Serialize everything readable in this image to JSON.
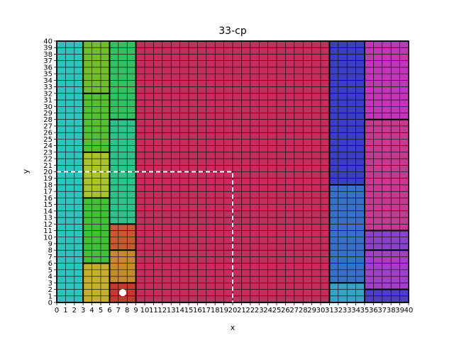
{
  "chart_data": {
    "type": "heatmap",
    "title": "33-cp",
    "xlabel": "x",
    "ylabel": "y",
    "xlim": [
      0,
      40
    ],
    "ylim": [
      0,
      40
    ],
    "grid_step": 1,
    "x_ticks": [
      0,
      1,
      2,
      3,
      4,
      5,
      6,
      7,
      8,
      9,
      10,
      11,
      12,
      13,
      14,
      15,
      16,
      17,
      18,
      19,
      20,
      21,
      22,
      23,
      24,
      25,
      26,
      27,
      28,
      29,
      30,
      31,
      32,
      33,
      34,
      35,
      36,
      37,
      38,
      39,
      40
    ],
    "y_ticks": [
      0,
      1,
      2,
      3,
      4,
      5,
      6,
      7,
      8,
      9,
      10,
      11,
      12,
      13,
      14,
      15,
      16,
      17,
      18,
      19,
      20,
      21,
      22,
      23,
      24,
      25,
      26,
      27,
      28,
      29,
      30,
      31,
      32,
      33,
      34,
      35,
      36,
      37,
      38,
      39,
      40
    ],
    "regions": [
      {
        "x0": 0,
        "x1": 3,
        "y0": 0,
        "y1": 40,
        "color": "#2ec4bc"
      },
      {
        "x0": 3,
        "x1": 6,
        "y0": 0,
        "y1": 6,
        "color": "#c4b030"
      },
      {
        "x0": 3,
        "x1": 6,
        "y0": 6,
        "y1": 16,
        "color": "#44c038"
      },
      {
        "x0": 3,
        "x1": 6,
        "y0": 16,
        "y1": 23,
        "color": "#a8c430"
      },
      {
        "x0": 3,
        "x1": 6,
        "y0": 23,
        "y1": 32,
        "color": "#52c032"
      },
      {
        "x0": 3,
        "x1": 6,
        "y0": 32,
        "y1": 40,
        "color": "#72bc2e"
      },
      {
        "x0": 6,
        "x1": 9,
        "y0": 0,
        "y1": 3,
        "color": "#c43a30"
      },
      {
        "x0": 6,
        "x1": 9,
        "y0": 3,
        "y1": 8,
        "color": "#c48a2e"
      },
      {
        "x0": 6,
        "x1": 9,
        "y0": 8,
        "y1": 12,
        "color": "#c45a32"
      },
      {
        "x0": 6,
        "x1": 9,
        "y0": 12,
        "y1": 28,
        "color": "#30c08a"
      },
      {
        "x0": 6,
        "x1": 9,
        "y0": 28,
        "y1": 40,
        "color": "#34c062"
      },
      {
        "x0": 9,
        "x1": 31,
        "y0": 0,
        "y1": 40,
        "color": "#c42e5c"
      },
      {
        "x0": 31,
        "x1": 35,
        "y0": 0,
        "y1": 3,
        "color": "#3aa0c4"
      },
      {
        "x0": 31,
        "x1": 35,
        "y0": 3,
        "y1": 18,
        "color": "#3870c4"
      },
      {
        "x0": 31,
        "x1": 35,
        "y0": 18,
        "y1": 40,
        "color": "#3c3ec4"
      },
      {
        "x0": 35,
        "x1": 40,
        "y0": 0,
        "y1": 2,
        "color": "#4e3ec4"
      },
      {
        "x0": 35,
        "x1": 40,
        "y0": 2,
        "y1": 8,
        "color": "#a040c4"
      },
      {
        "x0": 35,
        "x1": 40,
        "y0": 8,
        "y1": 11,
        "color": "#8844c4"
      },
      {
        "x0": 35,
        "x1": 40,
        "y0": 11,
        "y1": 28,
        "color": "#c43a8e"
      },
      {
        "x0": 35,
        "x1": 40,
        "y0": 28,
        "y1": 40,
        "color": "#c038b8"
      }
    ],
    "dashed_path": {
      "points": [
        [
          0,
          20
        ],
        [
          20,
          20
        ],
        [
          20,
          0
        ]
      ],
      "color": "#ffffff",
      "style": "dashed"
    },
    "marker": {
      "x": 7.5,
      "y": 1.5,
      "color": "#ffffff",
      "shape": "circle"
    }
  }
}
